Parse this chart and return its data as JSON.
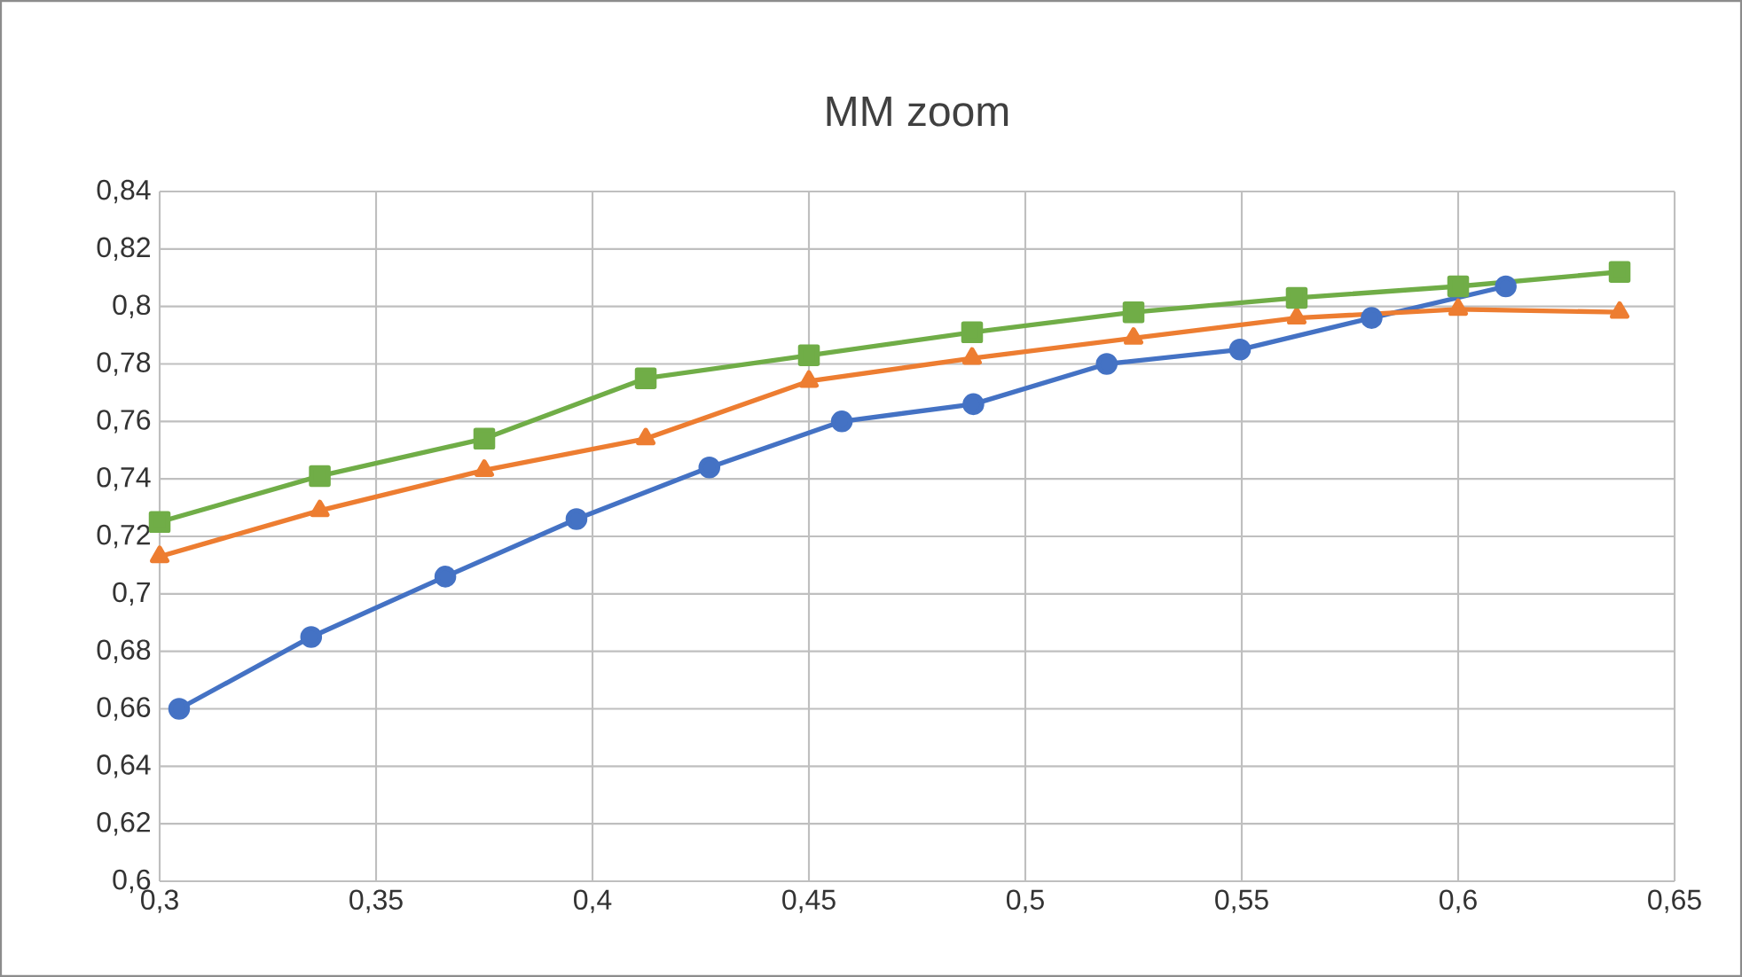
{
  "chart_data": {
    "type": "line",
    "title": "MM zoom",
    "grid": true,
    "line_style": "solid",
    "xlim": [
      0.3,
      0.65
    ],
    "ylim": [
      0.6,
      0.84
    ],
    "xticks": [
      {
        "value": 0.3,
        "label": "0,3"
      },
      {
        "value": 0.35,
        "label": "0,35"
      },
      {
        "value": 0.4,
        "label": "0,4"
      },
      {
        "value": 0.45,
        "label": "0,45"
      },
      {
        "value": 0.5,
        "label": "0,5"
      },
      {
        "value": 0.55,
        "label": "0,55"
      },
      {
        "value": 0.6,
        "label": "0,6"
      },
      {
        "value": 0.65,
        "label": "0,65"
      }
    ],
    "yticks": [
      {
        "value": 0.6,
        "label": "0,6"
      },
      {
        "value": 0.62,
        "label": "0,62"
      },
      {
        "value": 0.64,
        "label": "0,64"
      },
      {
        "value": 0.66,
        "label": "0,66"
      },
      {
        "value": 0.68,
        "label": "0,68"
      },
      {
        "value": 0.7,
        "label": "0,7"
      },
      {
        "value": 0.72,
        "label": "0,72"
      },
      {
        "value": 0.74,
        "label": "0,74"
      },
      {
        "value": 0.76,
        "label": "0,76"
      },
      {
        "value": 0.78,
        "label": "0,78"
      },
      {
        "value": 0.8,
        "label": "0,8"
      },
      {
        "value": 0.82,
        "label": "0,82"
      },
      {
        "value": 0.84,
        "label": "0,84"
      }
    ],
    "series": [
      {
        "color": "#4472c4",
        "marker": "circle",
        "x": [
          0.3045,
          0.335,
          0.366,
          0.3963,
          0.427,
          0.4576,
          0.488,
          0.5188,
          0.5496,
          0.58,
          0.611
        ],
        "values": [
          0.66,
          0.685,
          0.706,
          0.726,
          0.744,
          0.76,
          0.766,
          0.78,
          0.785,
          0.796,
          0.807
        ]
      },
      {
        "color": "#ed7d31",
        "marker": "triangle",
        "x": [
          0.3,
          0.337,
          0.375,
          0.4123,
          0.45,
          0.4877,
          0.525,
          0.5627,
          0.6,
          0.6373
        ],
        "values": [
          0.713,
          0.729,
          0.743,
          0.754,
          0.774,
          0.782,
          0.789,
          0.796,
          0.799,
          0.798
        ]
      },
      {
        "color": "#70ad47",
        "marker": "square",
        "x": [
          0.3,
          0.337,
          0.375,
          0.4123,
          0.45,
          0.4877,
          0.525,
          0.5627,
          0.6,
          0.6373
        ],
        "values": [
          0.725,
          0.741,
          0.754,
          0.775,
          0.783,
          0.791,
          0.798,
          0.803,
          0.807,
          0.812
        ]
      }
    ]
  }
}
